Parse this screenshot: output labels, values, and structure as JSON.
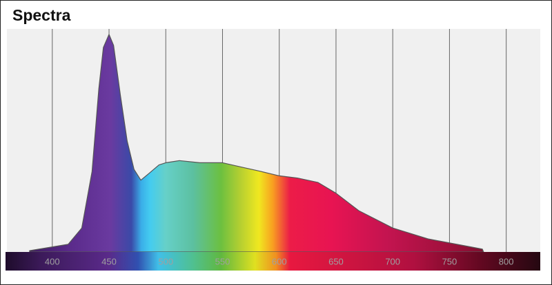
{
  "chart_data": {
    "type": "area",
    "title": "Spectra",
    "x": [
      380,
      414,
      426,
      435,
      441,
      445,
      450,
      454,
      460,
      466,
      472,
      478,
      485,
      494,
      500,
      512,
      530,
      550,
      567,
      584,
      600,
      616,
      634,
      650,
      670,
      700,
      731,
      767,
      779,
      780
    ],
    "values": [
      0.6,
      3.5,
      11,
      37,
      75,
      94,
      100,
      95,
      72,
      51,
      38,
      33,
      36,
      40,
      41,
      42,
      41,
      41,
      39,
      37,
      35,
      34,
      32,
      27,
      19,
      11,
      6,
      2.5,
      1.3,
      0
    ],
    "xlim": [
      360,
      830
    ],
    "ylim": [
      0,
      100
    ],
    "xticks": [
      400,
      450,
      500,
      550,
      600,
      650,
      700,
      750,
      800
    ],
    "grid": true
  }
}
